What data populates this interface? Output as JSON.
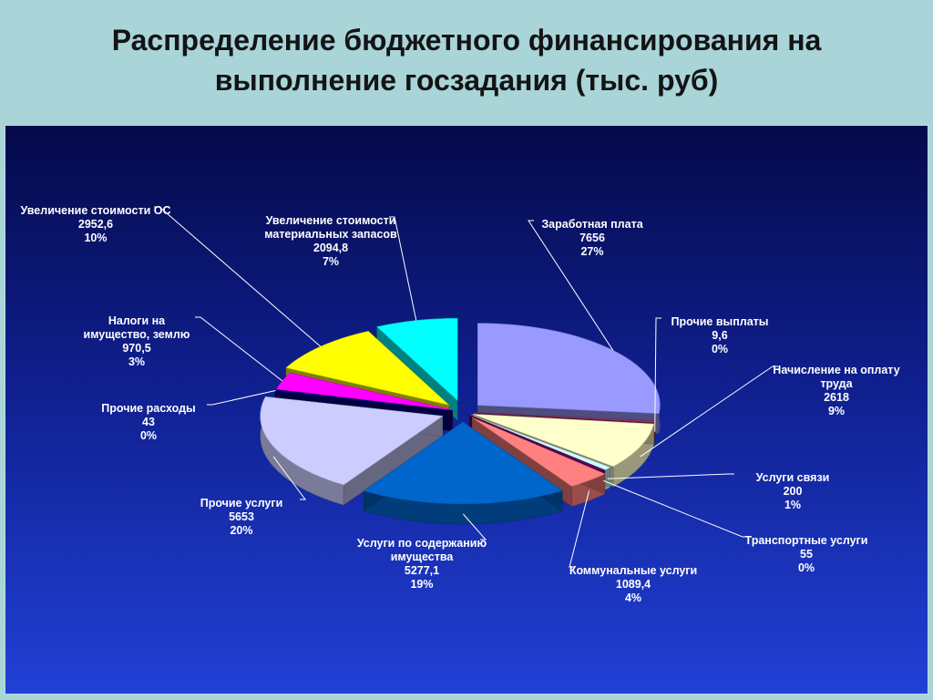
{
  "title": {
    "line1": "Распределение бюджетного финансирования на",
    "line2": "выполнение госзадания (тыс. руб)"
  },
  "chart_data": {
    "type": "pie",
    "categories": [
      "Заработная плата",
      "Прочие выплаты",
      "Начисление на оплату труда",
      "Услуги связи",
      "Транспортные услуги",
      "Коммунальные услуги",
      "Услуги по содержанию имущества",
      "Прочие услуги",
      "Прочие расходы",
      "Налоги на имущество, землю",
      "Увеличение стоимости ОС",
      "Увеличение стоимости материальных запасов"
    ],
    "values": [
      7656,
      9.6,
      2618,
      200,
      55,
      1089.4,
      5277.1,
      5653,
      43,
      970.5,
      2952.6,
      2094.8
    ],
    "labels": [
      {
        "name_lines": [
          "Заработная плата"
        ],
        "value": "7656",
        "pct": "27%"
      },
      {
        "name_lines": [
          "Прочие выплаты"
        ],
        "value": "9,6",
        "pct": "0%"
      },
      {
        "name_lines": [
          "Начисление на оплату",
          "труда"
        ],
        "value": "2618",
        "pct": "9%"
      },
      {
        "name_lines": [
          "Услуги связи"
        ],
        "value": "200",
        "pct": "1%"
      },
      {
        "name_lines": [
          "Транспортные услуги"
        ],
        "value": "55",
        "pct": "0%"
      },
      {
        "name_lines": [
          "Коммунальные услуги"
        ],
        "value": "1089,4",
        "pct": "4%"
      },
      {
        "name_lines": [
          "Услуги по содержанию",
          "имущества"
        ],
        "value": "5277,1",
        "pct": "19%"
      },
      {
        "name_lines": [
          "Прочие услуги"
        ],
        "value": "5653",
        "pct": "20%"
      },
      {
        "name_lines": [
          "Прочие расходы"
        ],
        "value": "43",
        "pct": "0%"
      },
      {
        "name_lines": [
          "Налоги на",
          "имущество, землю"
        ],
        "value": "970,5",
        "pct": "3%"
      },
      {
        "name_lines": [
          "Увеличение стоимости ОС"
        ],
        "value": "2952,6",
        "pct": "10%"
      },
      {
        "name_lines": [
          "Увеличение стоимости",
          "материальных запасов"
        ],
        "value": "2094,8",
        "pct": "7%"
      }
    ],
    "colors": [
      "#9999ff",
      "#993366",
      "#ffffcc",
      "#ccffff",
      "#660066",
      "#ff8080",
      "#0066cc",
      "#ccccff",
      "#000080",
      "#ff00ff",
      "#ffff00",
      "#00ffff"
    ],
    "legend": "none",
    "style": "3d-exploded"
  }
}
